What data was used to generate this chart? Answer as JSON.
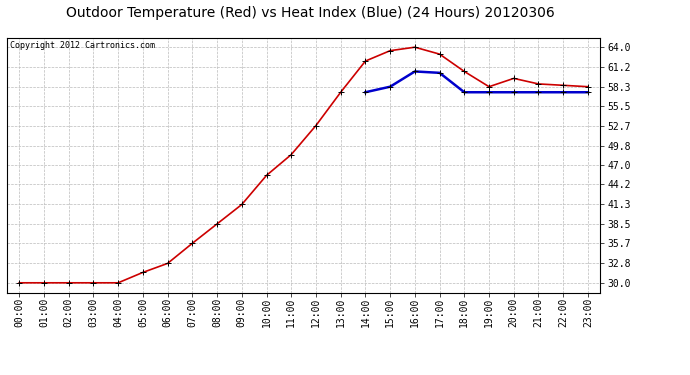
{
  "title": "Outdoor Temperature (Red) vs Heat Index (Blue) (24 Hours) 20120306",
  "copyright_text": "Copyright 2012 Cartronics.com",
  "x_labels": [
    "00:00",
    "01:00",
    "02:00",
    "03:00",
    "04:00",
    "05:00",
    "06:00",
    "07:00",
    "08:00",
    "09:00",
    "10:00",
    "11:00",
    "12:00",
    "13:00",
    "14:00",
    "15:00",
    "16:00",
    "17:00",
    "18:00",
    "19:00",
    "20:00",
    "21:00",
    "22:00",
    "23:00"
  ],
  "temp_red": [
    30.0,
    30.0,
    30.0,
    30.0,
    30.0,
    31.5,
    32.8,
    35.7,
    38.5,
    41.3,
    45.5,
    48.5,
    52.7,
    57.5,
    62.0,
    63.5,
    64.0,
    63.0,
    60.5,
    58.3,
    59.5,
    58.7,
    58.5,
    58.3
  ],
  "heat_blue": [
    null,
    null,
    null,
    null,
    null,
    null,
    null,
    null,
    null,
    null,
    null,
    null,
    null,
    null,
    57.5,
    58.3,
    60.5,
    60.3,
    57.5,
    57.5,
    57.5,
    57.5,
    57.5,
    57.5
  ],
  "y_ticks": [
    30.0,
    32.8,
    35.7,
    38.5,
    41.3,
    44.2,
    47.0,
    49.8,
    52.7,
    55.5,
    58.3,
    61.2,
    64.0
  ],
  "ylim_min": 28.6,
  "ylim_max": 65.4,
  "bg_color": "#ffffff",
  "plot_bg_color": "#ffffff",
  "grid_color": "#bbbbbb",
  "red_color": "#cc0000",
  "blue_color": "#0000cc",
  "title_fontsize": 10,
  "tick_fontsize": 7,
  "copyright_fontsize": 6
}
